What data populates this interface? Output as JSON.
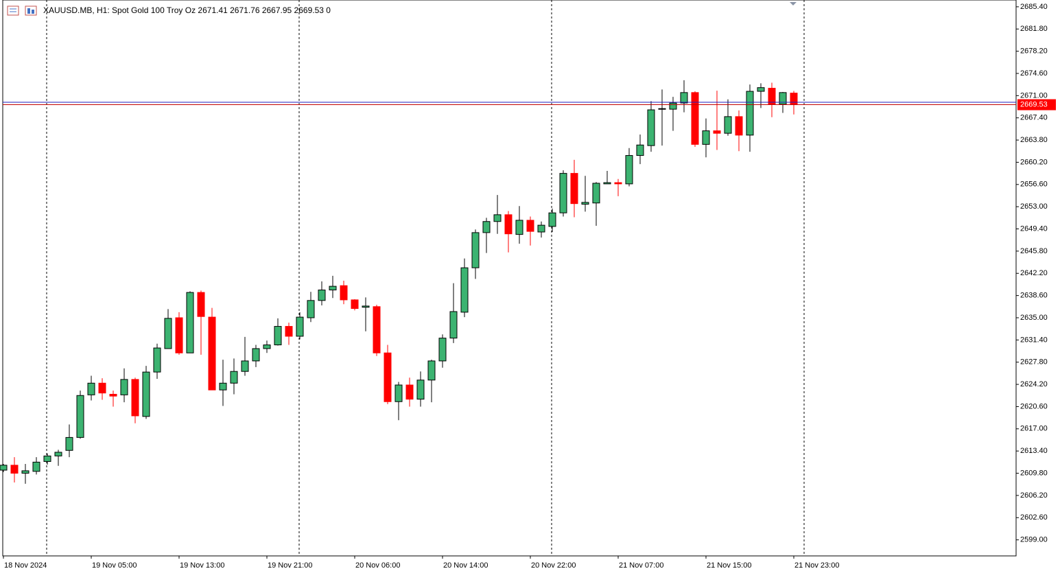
{
  "chart_data": {
    "type": "candlestick",
    "title": "XAUUSD.MB, H1:  Spot Gold 100 Troy Oz  2671.41 2671.76 2667.95 2669.53  0",
    "categories": [
      "18 Nov 2024",
      null,
      null,
      null,
      null,
      null,
      null,
      null,
      "19 Nov 05:00",
      null,
      null,
      null,
      null,
      null,
      null,
      null,
      "19 Nov 13:00",
      null,
      null,
      null,
      null,
      null,
      null,
      null,
      "19 Nov 21:00",
      null,
      null,
      null,
      null,
      null,
      null,
      null,
      "20 Nov 06:00",
      null,
      null,
      null,
      null,
      null,
      null,
      null,
      "20 Nov 14:00",
      null,
      null,
      null,
      null,
      null,
      null,
      null,
      "20 Nov 22:00",
      null,
      null,
      null,
      null,
      null,
      null,
      null,
      "21 Nov 07:00",
      null,
      null,
      null,
      null,
      null,
      null,
      null,
      "21 Nov 15:00",
      null,
      null,
      null,
      null,
      null,
      null,
      null,
      "21 Nov 23:00"
    ],
    "series": [
      {
        "up_color": "#3cb371",
        "down_color": "#ff0000",
        "open": [
          2610.3,
          2611.1,
          2609.8,
          2610.1,
          2611.7,
          2612.6,
          2613.5,
          2615.6,
          2622.5,
          2624.4,
          2622.6,
          2622.5,
          2625.0,
          2619.0,
          2626.2,
          2630.0,
          2635.0,
          2629.3,
          2639.1,
          2635.1,
          2623.3,
          2624.4,
          2626.3,
          2628.0,
          2630.0,
          2630.6,
          2633.6,
          2632.0,
          2635.0,
          2637.8,
          2639.5,
          2640.2,
          2637.9,
          2636.7,
          2636.8,
          2629.3,
          2621.4,
          2624.1,
          2621.8,
          2624.9,
          2628.0,
          2631.7,
          2635.9,
          2643.1,
          2648.8,
          2650.6,
          2651.7,
          2648.5,
          2650.8,
          2648.9,
          2649.8,
          2652.0,
          2658.4,
          2653.4,
          2653.6,
          2656.7,
          2656.9,
          2656.7,
          2661.3,
          2662.9,
          2668.8,
          2668.8,
          2669.8,
          2671.5,
          2663.1,
          2665.3,
          2664.9,
          2667.6,
          2664.6,
          2671.7,
          2672.2,
          2669.6,
          2671.41
        ],
        "high": [
          2611.3,
          2612.4,
          2611.3,
          2612.4,
          2613.0,
          2613.6,
          2617.7,
          2623.2,
          2625.6,
          2625.2,
          2623.2,
          2626.8,
          2625.3,
          2627.2,
          2630.8,
          2636.4,
          2635.9,
          2639.3,
          2639.4,
          2636.6,
          2628.2,
          2628.4,
          2631.9,
          2630.6,
          2631.3,
          2634.9,
          2634.2,
          2635.9,
          2639.2,
          2640.9,
          2641.8,
          2641.0,
          2638.0,
          2638.3,
          2637.1,
          2630.6,
          2624.6,
          2625.3,
          2626.3,
          2628.2,
          2632.3,
          2640.6,
          2644.6,
          2649.3,
          2651.2,
          2654.9,
          2652.3,
          2653.1,
          2651.4,
          2650.6,
          2652.7,
          2658.9,
          2660.6,
          2658.0,
          2657.0,
          2658.8,
          2657.5,
          2662.5,
          2664.7,
          2670.1,
          2672.0,
          2670.8,
          2673.5,
          2671.7,
          2667.3,
          2671.8,
          2670.4,
          2668.6,
          2672.8,
          2673.0,
          2673.1,
          2671.6,
          2671.76
        ],
        "low": [
          2610.0,
          2608.3,
          2608.1,
          2609.6,
          2611.2,
          2611.0,
          2612.4,
          2615.4,
          2621.6,
          2621.7,
          2620.6,
          2621.3,
          2617.9,
          2618.6,
          2625.1,
          2630.0,
          2629.0,
          2629.3,
          2629.0,
          2623.3,
          2620.7,
          2622.6,
          2625.6,
          2627.0,
          2629.3,
          2630.5,
          2630.6,
          2631.5,
          2634.3,
          2637.0,
          2638.2,
          2637.2,
          2636.2,
          2632.8,
          2628.8,
          2621.0,
          2618.4,
          2620.6,
          2620.6,
          2621.3,
          2626.9,
          2630.9,
          2635.1,
          2641.3,
          2645.5,
          2648.6,
          2645.6,
          2647.0,
          2646.7,
          2648.0,
          2648.9,
          2651.4,
          2651.3,
          2652.2,
          2649.9,
          2656.7,
          2654.7,
          2656.3,
          2659.9,
          2661.9,
          2662.9,
          2665.3,
          2668.3,
          2662.7,
          2661.0,
          2662.2,
          2664.5,
          2662.0,
          2661.9,
          2669.0,
          2667.5,
          2668.2,
          2667.95
        ],
        "close": [
          2611.1,
          2609.8,
          2610.2,
          2611.6,
          2612.6,
          2613.2,
          2615.6,
          2622.4,
          2624.4,
          2622.8,
          2622.3,
          2625.0,
          2619.1,
          2626.2,
          2630.1,
          2634.9,
          2629.3,
          2639.1,
          2635.2,
          2623.3,
          2624.4,
          2626.3,
          2628.0,
          2630.0,
          2630.6,
          2633.6,
          2632.0,
          2635.1,
          2637.8,
          2639.5,
          2640.1,
          2637.9,
          2636.5,
          2636.9,
          2629.3,
          2621.4,
          2624.1,
          2621.8,
          2624.9,
          2628.0,
          2631.7,
          2636.0,
          2643.1,
          2648.8,
          2650.6,
          2651.7,
          2648.6,
          2650.8,
          2649.0,
          2650.0,
          2652.0,
          2658.4,
          2653.5,
          2653.7,
          2656.8,
          2656.9,
          2656.7,
          2661.3,
          2663.0,
          2668.7,
          2668.9,
          2669.8,
          2671.5,
          2663.1,
          2665.3,
          2664.9,
          2667.6,
          2664.6,
          2671.7,
          2672.3,
          2669.6,
          2671.5,
          2669.53
        ]
      }
    ],
    "current_price": 2669.53,
    "bid_color": "#c00000",
    "ask_line": 2669.93,
    "ask_color": "#1f1fbf",
    "ylim": [
      2596.4,
      2686.5
    ],
    "yticks": [
      {
        "value": 2599.0,
        "label": "2599.00"
      },
      {
        "value": 2602.6,
        "label": "2602.60"
      },
      {
        "value": 2606.2,
        "label": "2606.20"
      },
      {
        "value": 2609.8,
        "label": "2609.80"
      },
      {
        "value": 2613.4,
        "label": "2613.40"
      },
      {
        "value": 2617.0,
        "label": "2617.00"
      },
      {
        "value": 2620.6,
        "label": "2620.60"
      },
      {
        "value": 2624.2,
        "label": "2624.20"
      },
      {
        "value": 2627.8,
        "label": "2627.80"
      },
      {
        "value": 2631.4,
        "label": "2631.40"
      },
      {
        "value": 2635.0,
        "label": "2635.00"
      },
      {
        "value": 2638.6,
        "label": "2638.60"
      },
      {
        "value": 2642.2,
        "label": "2642.20"
      },
      {
        "value": 2645.8,
        "label": "2645.80"
      },
      {
        "value": 2649.4,
        "label": "2649.40"
      },
      {
        "value": 2653.0,
        "label": "2653.00"
      },
      {
        "value": 2656.6,
        "label": "2656.60"
      },
      {
        "value": 2660.2,
        "label": "2660.20"
      },
      {
        "value": 2663.8,
        "label": "2663.80"
      },
      {
        "value": 2667.4,
        "label": "2667.40"
      },
      {
        "value": 2671.0,
        "label": "2671.00"
      },
      {
        "value": 2674.6,
        "label": "2674.60"
      },
      {
        "value": 2678.2,
        "label": "2678.20"
      },
      {
        "value": 2681.8,
        "label": "2681.80"
      },
      {
        "value": 2685.4,
        "label": "2685.40"
      }
    ],
    "grid": false
  }
}
